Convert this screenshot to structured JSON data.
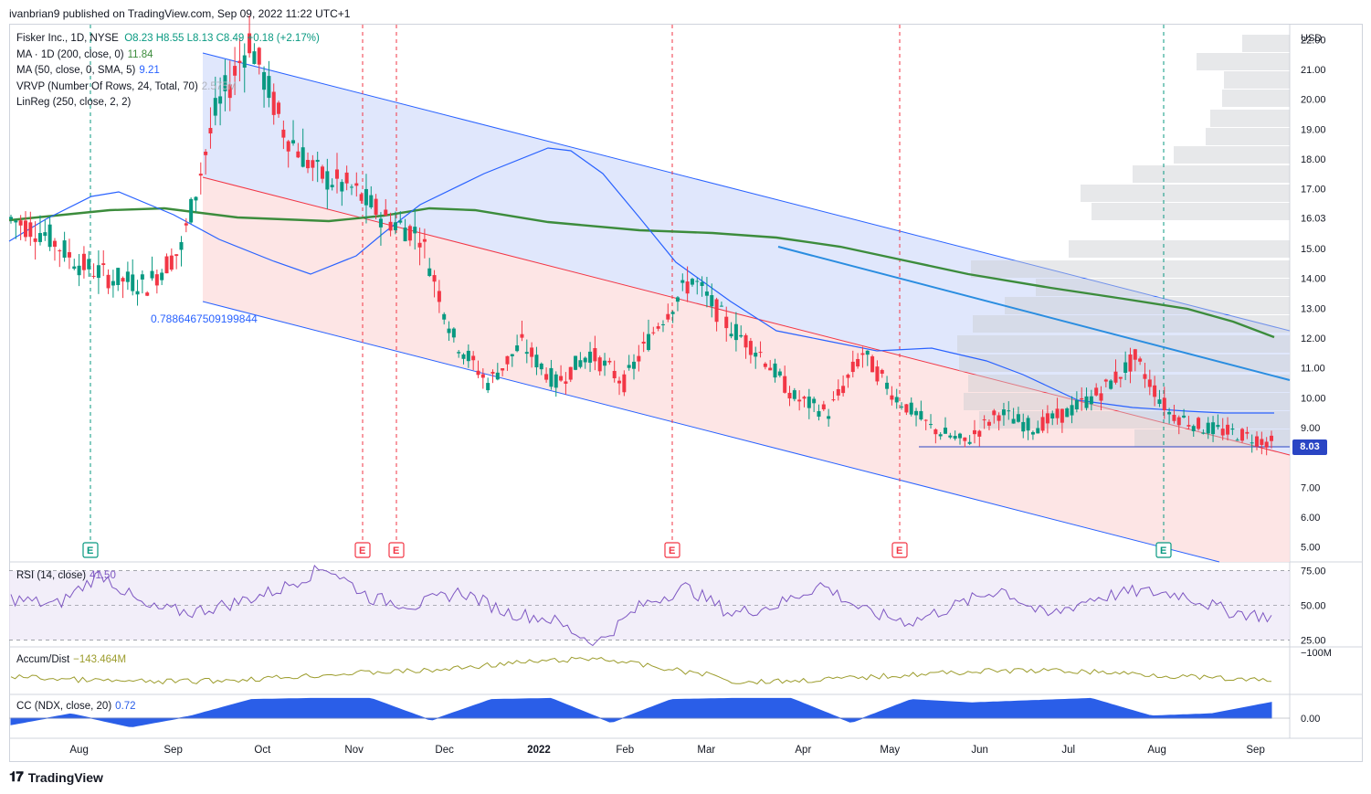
{
  "header": {
    "published": "ivanbrian9 published on TradingView.com, Sep 09, 2022 11:22 UTC+1"
  },
  "legend": {
    "symbol": "Fisker Inc., 1D, NYSE",
    "ohlc": "O8.23  H8.55  L8.13  C8.49  +0.18 (+2.17%)",
    "ma200_label": "MA · 1D (200, close, 0)",
    "ma200_value": "11.84",
    "ma50_label": "MA (50, close, 0, SMA, 5)",
    "ma50_value": "9.21",
    "vrvp_label": "VRVP (Number Of Rows, 24, Total, 70)",
    "vrvp_value": "2.575M",
    "linreg_label": "LinReg (250, close, 2, 2)"
  },
  "annotation": {
    "value": "0.7886467509199844"
  },
  "price_axis": {
    "currency": "USD",
    "last_price": "8.03",
    "ticks": [
      "22.00",
      "21.00",
      "20.00",
      "19.00",
      "18.00",
      "17.00",
      "16.03",
      "15.00",
      "14.00",
      "13.00",
      "12.00",
      "11.00",
      "10.00",
      "9.00",
      "8.03",
      "7.00",
      "6.00",
      "5.00"
    ]
  },
  "rsi": {
    "label": "RSI (14, close)",
    "value": "41.50",
    "ticks": [
      "75.00",
      "50.00",
      "25.00"
    ]
  },
  "ad": {
    "label": "Accum/Dist",
    "value": "−143.464M",
    "tick": "−100M"
  },
  "cc": {
    "label": "CC (NDX, close, 20)",
    "value": "0.72",
    "tick": "0.00"
  },
  "time_axis": [
    "Aug",
    "Sep",
    "Oct",
    "Nov",
    "Dec",
    "2022",
    "Feb",
    "Mar",
    "Apr",
    "May",
    "Jun",
    "Jul",
    "Aug",
    "Sep"
  ],
  "earnings_marker": "E",
  "footer": {
    "brand": "TradingView"
  },
  "colors": {
    "up": "#089981",
    "down": "#f23645",
    "ma200": "#3c8c3c",
    "ma50": "#2962ff",
    "channel_upper_fill": "#dbe3fb",
    "channel_lower_fill": "#fde0e1",
    "rsi": "#7e57c2",
    "ad": "#9c9c2c",
    "cc": "#2a5ee8"
  },
  "chart_data": [
    {
      "type": "candlestick",
      "title": "Fisker Inc., 1D, NYSE",
      "ylim": [
        4.5,
        22.5
      ],
      "x": [
        "Aug",
        "Sep",
        "Oct",
        "Nov",
        "Dec",
        "2022",
        "Feb",
        "Mar",
        "Apr",
        "May",
        "Jun",
        "Jul",
        "Aug",
        "Sep"
      ],
      "approx_closes": [
        16.0,
        15.5,
        14.5,
        14.0,
        13.8,
        15.0,
        19.5,
        22.0,
        19.0,
        17.5,
        17.0,
        16.0,
        15.5,
        12.0,
        10.5,
        11.8,
        10.5,
        11.5,
        10.5,
        12.5,
        14.0,
        12.5,
        11.5,
        10.0,
        9.5,
        11.5,
        10.0,
        9.0,
        8.5,
        9.5,
        9.0,
        9.5,
        10.2,
        11.3,
        9.5,
        9.0,
        8.8,
        8.49
      ],
      "last": 8.49,
      "support": 8.03
    },
    {
      "type": "line",
      "title": "RSI (14, close)",
      "ylim": [
        20,
        80
      ],
      "values": [
        55,
        50,
        73,
        48,
        45,
        52,
        62,
        78,
        55,
        50,
        60,
        45,
        40,
        22,
        50,
        63,
        44,
        50,
        65,
        45,
        38,
        50,
        62,
        42,
        55,
        60,
        58,
        46,
        41.5
      ]
    },
    {
      "type": "line",
      "title": "Accum/Dist",
      "value": "−143.464M"
    },
    {
      "type": "area",
      "title": "CC (NDX, close, 20)",
      "ylim": [
        -1,
        1
      ],
      "values": [
        -0.3,
        0.2,
        -0.4,
        0.1,
        0.85,
        0.9,
        0.9,
        -0.1,
        0.85,
        0.9,
        -0.2,
        0.85,
        0.9,
        0.9,
        -0.2,
        0.85,
        0.7,
        0.8,
        0.9,
        0.1,
        0.2,
        0.72
      ]
    }
  ]
}
